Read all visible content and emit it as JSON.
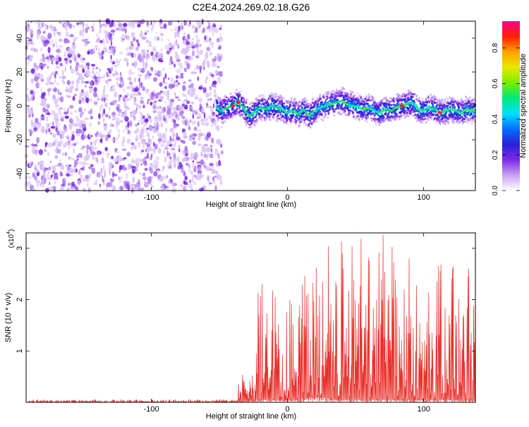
{
  "title": "C2E4.2024.269.02.18.G26",
  "chart_data": [
    {
      "type": "heatmap",
      "xlabel": "Height of straight line (km)",
      "ylabel": "Frequency (Hz)",
      "xlim": [
        -192,
        138
      ],
      "ylim": [
        -50,
        50
      ],
      "xticks": [
        -100,
        0,
        100
      ],
      "yticks": [
        -40,
        -20,
        0,
        20,
        40
      ],
      "noise_region_x": [
        -192,
        -48
      ],
      "signal_region_x": [
        -52,
        138
      ],
      "signal_trace": {
        "x": [
          -52,
          -48,
          -44,
          -40,
          -36,
          -32,
          -28,
          -24,
          -20,
          -16,
          -12,
          -8,
          -4,
          0,
          4,
          8,
          12,
          16,
          20,
          24,
          28,
          32,
          36,
          40,
          44,
          48,
          52,
          56,
          60,
          64,
          68,
          72,
          76,
          80,
          84,
          88,
          92,
          96,
          100,
          104,
          108,
          112,
          116,
          120,
          124,
          128,
          132,
          136,
          138
        ],
        "y": [
          -1,
          -3,
          -1,
          0,
          2,
          -1,
          -6,
          -4,
          -1,
          -2,
          0,
          -1,
          -2,
          -4,
          -3,
          -5,
          -2,
          -6,
          -3,
          -1,
          0,
          1,
          2,
          3,
          1,
          0,
          -1,
          -2,
          -1,
          -3,
          -4,
          -2,
          -3,
          -1,
          0,
          1,
          2,
          -2,
          -3,
          -1,
          -2,
          -4,
          -3,
          -2,
          -3,
          -4,
          -2,
          -3,
          -2
        ],
        "peak_x": [
          -40,
          -36,
          84,
          112
        ]
      },
      "colorbar": {
        "label": "Normalized spectral amplitude",
        "range": [
          0,
          0.95
        ],
        "ticks": [
          0.0,
          0.2,
          0.4,
          0.6,
          0.8
        ],
        "colors": [
          "#ffffff",
          "#c8a0f0",
          "#7c2ae8",
          "#2b1fd6",
          "#0070ff",
          "#00e0ff",
          "#00e87a",
          "#78ee00",
          "#e8e800",
          "#ffa000",
          "#ff2000",
          "#ff0090"
        ]
      }
    },
    {
      "type": "line",
      "xlabel": "Height of straight line (km)",
      "ylabel": "SNR (10 * v/v)",
      "y_multiplier": "(x10",
      "y_multiplier_exp": "4",
      "y_multiplier_close": ")",
      "xlim": [
        -192,
        138
      ],
      "ylim": [
        0,
        3.3
      ],
      "xticks": [
        -100,
        0,
        100
      ],
      "yticks": [
        1,
        2,
        3
      ],
      "series": [
        {
          "color": "#e8302a",
          "segments": [
            {
              "x_range": [
                -192,
                -36
              ],
              "min": 0.0,
              "max": 0.06
            },
            {
              "x_range": [
                -36,
                -24
              ],
              "min": 0.02,
              "max": 0.55
            },
            {
              "x_range": [
                -24,
                -16
              ],
              "min": 0.05,
              "max": 2.35
            },
            {
              "x_range": [
                -16,
                10
              ],
              "min": 0.05,
              "max": 2.2
            },
            {
              "x_range": [
                10,
                30
              ],
              "min": 0.1,
              "max": 2.9
            },
            {
              "x_range": [
                30,
                80
              ],
              "min": 0.05,
              "max": 3.3
            },
            {
              "x_range": [
                80,
                138
              ],
              "min": 0.05,
              "max": 2.95
            }
          ]
        }
      ]
    }
  ]
}
